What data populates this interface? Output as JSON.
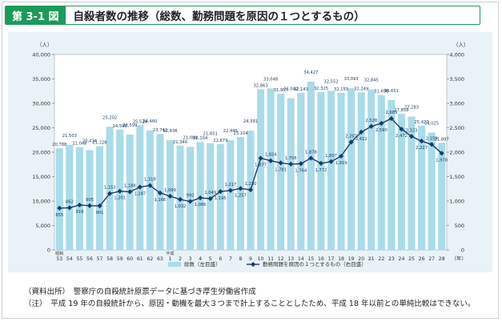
{
  "figure": {
    "number": "第 3-1 図",
    "title": "自殺者数の推移（総数、勤務問題を原因の１つとするもの）"
  },
  "chart_data": {
    "type": "bar+line",
    "era_labels": [
      "昭和",
      "平成"
    ],
    "categories": [
      "53",
      "54",
      "55",
      "56",
      "57",
      "58",
      "59",
      "60",
      "61",
      "62",
      "63",
      "1",
      "2",
      "3",
      "4",
      "5",
      "6",
      "7",
      "8",
      "9",
      "10",
      "11",
      "12",
      "13",
      "14",
      "15",
      "16",
      "17",
      "18",
      "19",
      "20",
      "21",
      "22",
      "23",
      "24",
      "25",
      "26",
      "27",
      "28"
    ],
    "series": [
      {
        "name": "総数（左目盛）",
        "kind": "bar",
        "axis": "left",
        "values": [
          20788,
          21503,
          21048,
          20434,
          21228,
          25202,
          24596,
          23599,
          25524,
          24460,
          23742,
          22436,
          21346,
          21084,
          22104,
          21851,
          21679,
          22445,
          23104,
          24391,
          32863,
          33048,
          31957,
          31042,
          32143,
          34427,
          32325,
          32552,
          32155,
          33093,
          32249,
          32845,
          31690,
          30651,
          27858,
          27283,
          25427,
          24025,
          21897
        ]
      },
      {
        "name": "勤務問題を原因の１つとするもの（右目盛）",
        "kind": "line",
        "axis": "right",
        "values": [
          855,
          862,
          919,
          905,
          901,
          1153,
          1201,
          1188,
          1287,
          1318,
          1166,
          1099,
          1032,
          992,
          1066,
          1049,
          1195,
          1217,
          1257,
          1230,
          1877,
          1824,
          1781,
          1756,
          1764,
          1878,
          1772,
          1807,
          1919,
          2207,
          2412,
          2528,
          2590,
          2689,
          2472,
          2323,
          2227,
          2159,
          1978
        ]
      }
    ],
    "left_axis": {
      "unit": "（人）",
      "ylim": [
        0,
        40000
      ],
      "ticks": [
        "0",
        "5,000",
        "10,000",
        "15,000",
        "20,000",
        "25,000",
        "30,000",
        "35,000",
        "40,000"
      ]
    },
    "right_axis": {
      "unit": "（人）",
      "ylim": [
        0,
        4000
      ],
      "ticks": [
        "0",
        "500",
        "1,000",
        "1,500",
        "2,000",
        "2,500",
        "3,000",
        "3,500",
        "4,000"
      ]
    },
    "x_unit": "（年）",
    "legend_position": "bottom-center",
    "colors": {
      "bar": "#a9dbea",
      "line": "#1b3a6b",
      "frame": "#1d9a5a"
    }
  },
  "notes": {
    "source": "（資料出所）　警察庁の自殺統計原票データに基づき厚生労働省作成",
    "caveat": "（注）　平成 19 年の自殺統計から、原因・動機を最大３つまで計上することとしたため、平成 18 年以前との単純比較はできない。"
  }
}
